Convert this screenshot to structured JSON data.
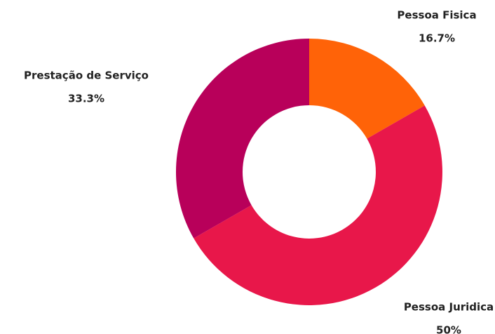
{
  "chart_data": {
    "type": "pie",
    "categories": [
      "Pessoa Fisica",
      "Pessoa Juridica",
      "Prestação de Serviço"
    ],
    "values": [
      16.7,
      50,
      33.3
    ],
    "value_labels": [
      "16.7%",
      "50%",
      "33.3%"
    ],
    "colors": [
      "#ff6308",
      "#e8174a",
      "#b8005a"
    ],
    "donut": true
  }
}
